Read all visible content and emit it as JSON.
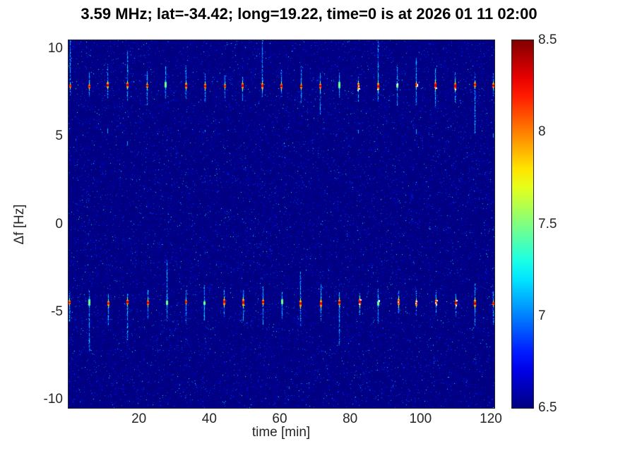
{
  "figure": {
    "background": "#ffffff",
    "axis_color": "#262626",
    "title_color": "#000000"
  },
  "chart_data": {
    "type": "heatmap",
    "title": "3.59 MHz;  lat=-34.42; long=19.22, time=0 is at 2026 01 11 02:00",
    "xlabel": "time [min]",
    "ylabel": "Δf [Hz]",
    "xlim": [
      0,
      121
    ],
    "ylim": [
      -10.5,
      10.5
    ],
    "x_ticks": [
      20,
      40,
      60,
      80,
      100,
      120
    ],
    "y_ticks": [
      10,
      5,
      0,
      -5,
      -10
    ],
    "grid": false,
    "legend": "none",
    "colormap": "jet",
    "colorbar": {
      "min": 6.5,
      "max": 8.5,
      "ticks": [
        8.5,
        8,
        7.5,
        7,
        6.5
      ],
      "position": "right"
    },
    "background_value": 6.5,
    "noise_floor_max": 7.0,
    "bands": [
      {
        "name": "upper-sideband",
        "center_hz": 7.9,
        "streak_period_min": 5.48,
        "first_streak_min": 0.3,
        "streak_count": 23,
        "core_value": 8.45,
        "halo_value": 7.3,
        "core_height_hz": 0.5,
        "halo_height_hz": 1.8,
        "white_speck_range_min": [
          82,
          112
        ]
      },
      {
        "name": "lower-sideband",
        "center_hz": -4.5,
        "streak_period_min": 5.48,
        "first_streak_min": 0.3,
        "streak_count": 23,
        "core_value": 8.4,
        "halo_value": 7.3,
        "core_height_hz": 0.5,
        "halo_height_hz": 1.8,
        "white_speck_range_min": [
          80,
          112
        ]
      }
    ]
  }
}
